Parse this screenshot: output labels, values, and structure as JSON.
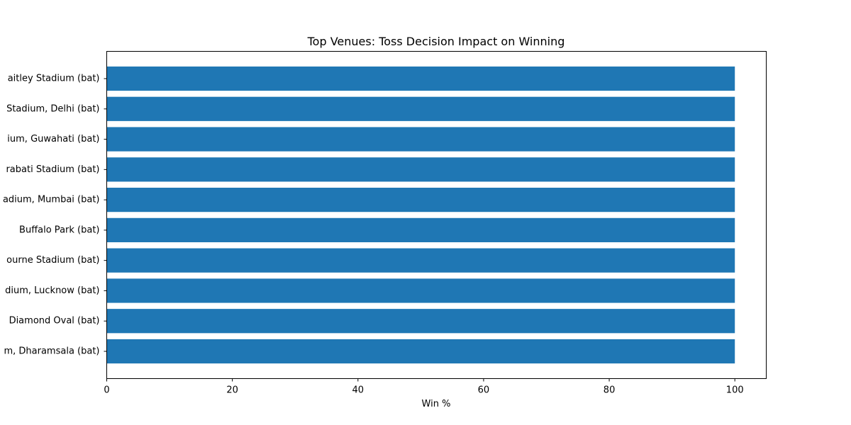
{
  "chart_data": {
    "type": "bar",
    "orientation": "horizontal",
    "title": "Top Venues: Toss Decision Impact on Winning",
    "xlabel": "Win %",
    "ylabel": "",
    "xlim": [
      0,
      105
    ],
    "xticks": [
      0,
      20,
      40,
      60,
      80,
      100
    ],
    "categories": [
      "aitley Stadium (bat)",
      "Stadium, Delhi (bat)",
      "ium, Guwahati (bat)",
      "rabati Stadium (bat)",
      "adium, Mumbai (bat)",
      "Buffalo Park (bat)",
      "ourne Stadium (bat)",
      "dium, Lucknow (bat)",
      "Diamond Oval (bat)",
      "m, Dharamsala (bat)"
    ],
    "values": [
      100,
      100,
      100,
      100,
      100,
      100,
      100,
      100,
      100,
      100
    ],
    "bar_color": "#1f77b4",
    "grid": false,
    "legend": "none"
  }
}
